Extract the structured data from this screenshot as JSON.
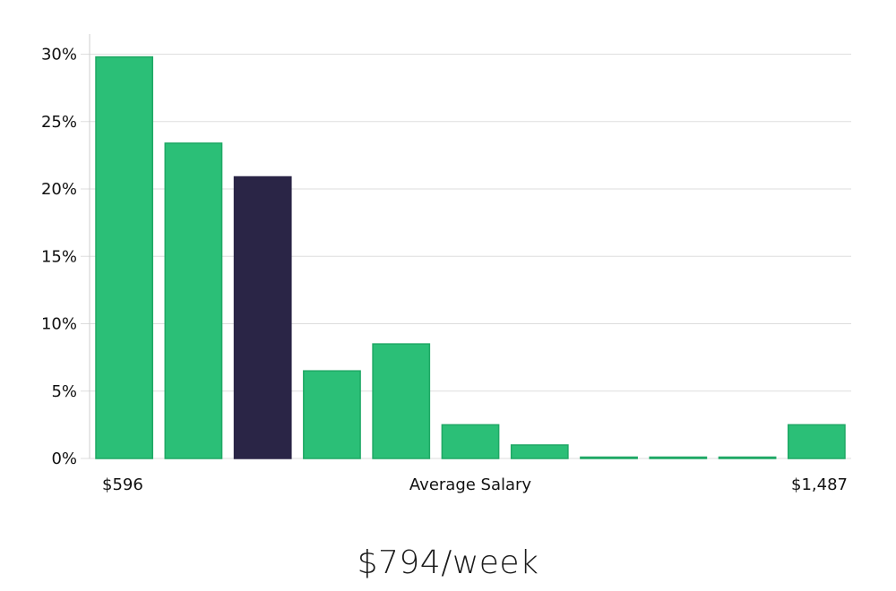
{
  "chart_data": {
    "type": "bar",
    "categories": [
      "1",
      "2",
      "3",
      "4",
      "5",
      "6",
      "7",
      "8",
      "9",
      "10",
      "11"
    ],
    "values": [
      29.8,
      23.4,
      20.9,
      6.5,
      8.5,
      2.5,
      1.0,
      0.1,
      0.1,
      0.1,
      2.5
    ],
    "highlight_index": 2,
    "ylim": [
      0,
      31.5
    ],
    "yticks": [
      {
        "value": 0,
        "label": "0%"
      },
      {
        "value": 5,
        "label": "5%"
      },
      {
        "value": 10,
        "label": "10%"
      },
      {
        "value": 15,
        "label": "15%"
      },
      {
        "value": 20,
        "label": "20%"
      },
      {
        "value": 25,
        "label": "25%"
      },
      {
        "value": 30,
        "label": "30%"
      }
    ],
    "x_labels": {
      "min": "$596",
      "center": "Average Salary",
      "max": "$1,487"
    },
    "grid": true,
    "colors": {
      "bar": "#2bbf77",
      "bar_stroke": "#1fa865",
      "highlight": "#2a2546",
      "grid": "#dddddd",
      "axis": "#cfcfcf"
    }
  },
  "headline": {
    "value": "$794/week"
  }
}
